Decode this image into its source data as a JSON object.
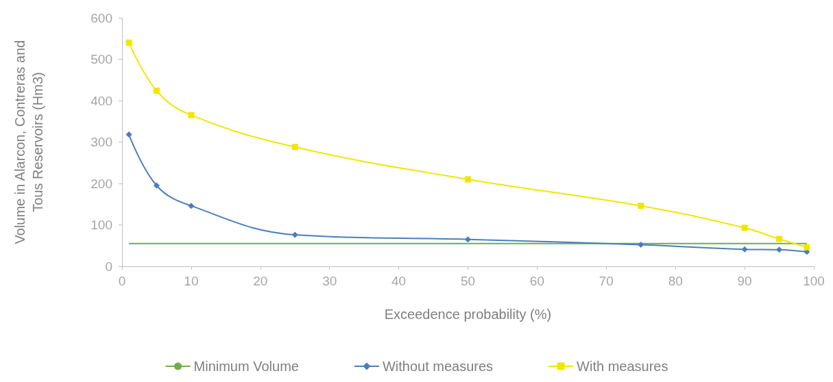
{
  "chart_data": {
    "type": "line",
    "xlabel": "Exceedence probability (%)",
    "ylabel": "Volume in Alarcon, Contreras and Tous Reservoirs (Hm3)",
    "x": [
      1,
      5,
      10,
      25,
      50,
      75,
      90,
      95,
      99
    ],
    "series": [
      {
        "name": "Minimum Volume",
        "color": "#70ad47",
        "x": [
          1,
          99
        ],
        "values": [
          55,
          55
        ],
        "marker": "none"
      },
      {
        "name": "Without measures",
        "color": "#4a7ebb",
        "values": [
          318,
          195,
          146,
          76,
          65,
          52,
          41,
          40,
          35
        ],
        "marker": "diamond"
      },
      {
        "name": "With measures",
        "color": "#f2e600",
        "values": [
          540,
          424,
          365,
          288,
          210,
          146,
          93,
          66,
          46
        ],
        "marker": "square"
      }
    ],
    "xlim": [
      0,
      100
    ],
    "xticks": [
      0,
      10,
      20,
      30,
      40,
      50,
      60,
      70,
      80,
      90,
      100
    ],
    "ylim": [
      0,
      600
    ],
    "yticks": [
      0,
      100,
      200,
      300,
      400,
      500,
      600
    ],
    "grid": false,
    "legend": "bottom",
    "line_style": "solid"
  }
}
